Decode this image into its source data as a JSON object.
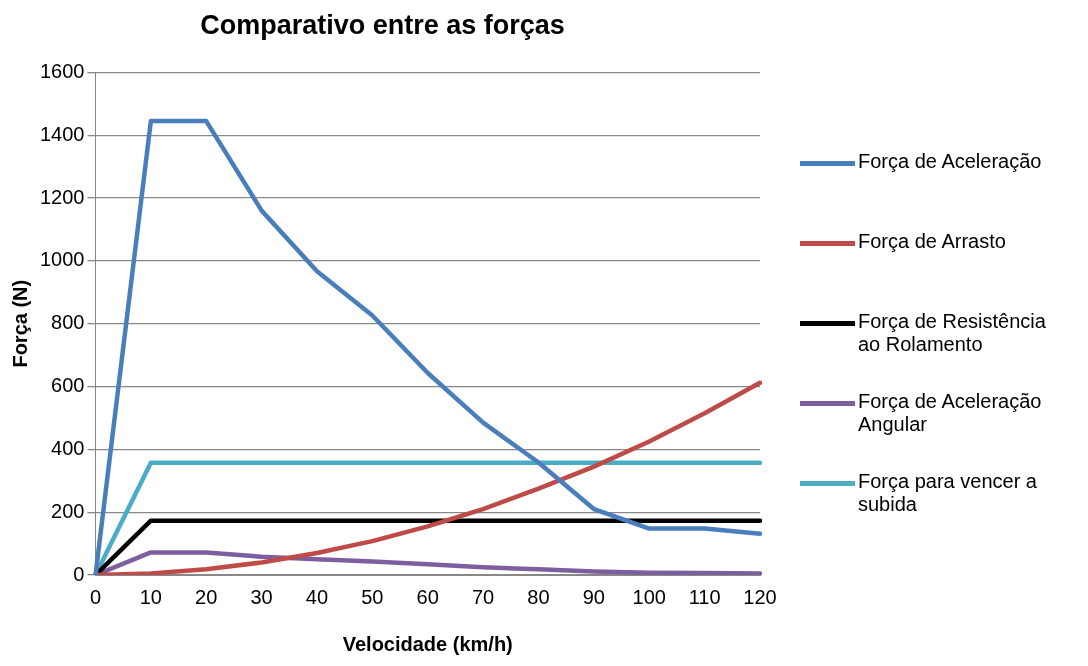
{
  "chart_data": {
    "type": "line",
    "title": "Comparativo entre as forças",
    "xlabel": "Velocidade (km/h)",
    "ylabel": "Força (N)",
    "categories": [
      "0",
      "10",
      "20",
      "30",
      "40",
      "50",
      "60",
      "70",
      "80",
      "90",
      "100",
      "110",
      "120"
    ],
    "ylim": [
      0,
      1600
    ],
    "yticks": [
      0,
      200,
      400,
      600,
      800,
      1000,
      1200,
      1400,
      1600
    ],
    "grid": "y",
    "legend": "right",
    "marker": "none",
    "line_style": "solid",
    "series": [
      {
        "name": "Força de Aceleração",
        "color": "#4a7ebb",
        "values": [
          0,
          1445,
          1445,
          1160,
          967,
          826,
          643,
          485,
          358,
          210,
          148,
          148,
          131
        ]
      },
      {
        "name": "Força de Arrasto",
        "color": "#be4b48",
        "values": [
          0,
          5,
          18,
          40,
          70,
          108,
          155,
          210,
          275,
          345,
          425,
          515,
          612
        ]
      },
      {
        "name": "Força de Resistência ao Rolamento",
        "color": "#000000",
        "values": [
          0,
          173,
          173,
          173,
          173,
          173,
          173,
          173,
          173,
          173,
          173,
          173,
          173
        ]
      },
      {
        "name": "Força de Aceleração Angular",
        "color": "#7d5fa0",
        "values": [
          0,
          72,
          72,
          58,
          50,
          43,
          34,
          25,
          18,
          11,
          7,
          6,
          5
        ]
      },
      {
        "name": "Força para vencer a subida",
        "color": "#4bacc6",
        "values": [
          0,
          357,
          357,
          357,
          357,
          357,
          357,
          357,
          357,
          357,
          357,
          357,
          357
        ]
      }
    ]
  }
}
